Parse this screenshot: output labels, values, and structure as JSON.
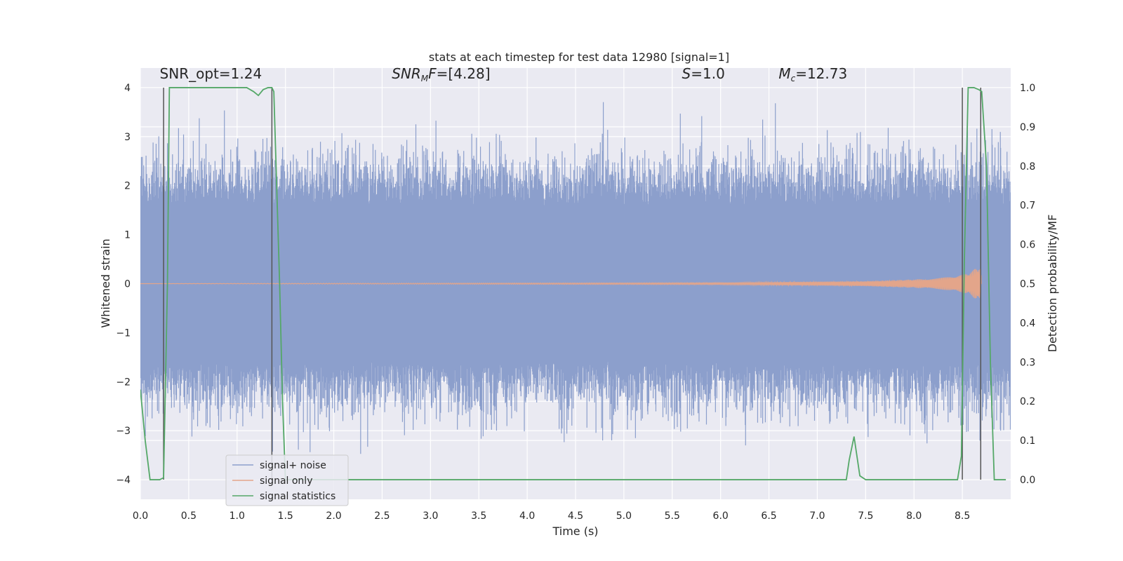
{
  "chart_data": {
    "type": "line",
    "title": "stats at each timestep for test data 12980 [signal=1]",
    "xlabel": "Time (s)",
    "ylabel": "Whitened strain",
    "y2label": "Detection probability/MF",
    "xlim": [
      0,
      9
    ],
    "ylim": [
      -4.4,
      4.4
    ],
    "y2lim": [
      -0.05,
      1.05
    ],
    "xticks": [
      0.0,
      0.5,
      1.0,
      1.5,
      2.0,
      2.5,
      3.0,
      3.5,
      4.0,
      4.5,
      5.0,
      5.5,
      6.0,
      6.5,
      7.0,
      7.5,
      8.0,
      8.5
    ],
    "xtick_labels": [
      "0.0",
      "0.5",
      "1.0",
      "1.5",
      "2.0",
      "2.5",
      "3.0",
      "3.5",
      "4.0",
      "4.5",
      "5.0",
      "5.5",
      "6.0",
      "6.5",
      "7.0",
      "7.5",
      "8.0",
      "8.5"
    ],
    "yticks": [
      -4,
      -3,
      -2,
      -1,
      0,
      1,
      2,
      3,
      4
    ],
    "ytick_labels": [
      "−4",
      "−3",
      "−2",
      "−1",
      "0",
      "1",
      "2",
      "3",
      "4"
    ],
    "y2ticks": [
      0.0,
      0.1,
      0.2,
      0.3,
      0.4,
      0.5,
      0.6,
      0.7,
      0.8,
      0.9,
      1.0
    ],
    "y2tick_labels": [
      "0.0",
      "0.1",
      "0.2",
      "0.3",
      "0.4",
      "0.5",
      "0.6",
      "0.7",
      "0.8",
      "0.9",
      "1.0"
    ],
    "grid": true,
    "legend_position": "lower-left",
    "annotations": [
      {
        "html": "SNR_opt=1.24",
        "x": 0.2,
        "y": 4.1
      },
      {
        "html": "<tspan font-style='italic'>SNR</tspan><tspan font-style='italic' font-size='12' dy='4'>M</tspan><tspan font-style='italic' dy='-4'>F</tspan>=[4.28]",
        "x": 2.6,
        "y": 4.1
      },
      {
        "html": "<tspan font-style='italic'>S</tspan>=1.0",
        "x": 5.6,
        "y": 4.1
      },
      {
        "html": "<tspan font-style='italic'>M</tspan><tspan font-style='italic' font-size='12' dy='4'>c</tspan><tspan dy='-4'>=12.73</tspan>",
        "x": 6.6,
        "y": 4.1
      }
    ],
    "series": [
      {
        "name": "signal+ noise",
        "color": "#8c9fcc",
        "kind": "noise",
        "x_range": [
          0,
          9
        ],
        "sigma_inner": 1.6,
        "peak_max": 4.0
      },
      {
        "name": "signal only",
        "color": "#e3a58a",
        "kind": "chirp",
        "x_range": [
          0,
          8.7
        ],
        "envelope": [
          [
            0,
            0.0
          ],
          [
            6.0,
            0.02
          ],
          [
            7.5,
            0.05
          ],
          [
            8.2,
            0.1
          ],
          [
            8.5,
            0.18
          ],
          [
            8.6,
            0.25
          ],
          [
            8.65,
            0.35
          ],
          [
            8.69,
            0.3
          ],
          [
            8.7,
            0.0
          ]
        ]
      },
      {
        "name": "signal statistics",
        "color": "#55a868",
        "kind": "step",
        "axis": "y2",
        "points": [
          [
            0.0,
            0.23
          ],
          [
            0.05,
            0.1
          ],
          [
            0.1,
            0.0
          ],
          [
            0.2,
            0.0
          ],
          [
            0.24,
            0.005
          ],
          [
            0.28,
            0.5
          ],
          [
            0.3,
            1.0
          ],
          [
            1.0,
            1.0
          ],
          [
            1.1,
            1.0
          ],
          [
            1.17,
            0.99
          ],
          [
            1.22,
            0.98
          ],
          [
            1.27,
            0.995
          ],
          [
            1.32,
            1.0
          ],
          [
            1.36,
            1.0
          ],
          [
            1.38,
            0.99
          ],
          [
            1.44,
            0.5
          ],
          [
            1.47,
            0.2
          ],
          [
            1.5,
            0.0
          ],
          [
            7.3,
            0.0
          ],
          [
            7.33,
            0.05
          ],
          [
            7.38,
            0.11
          ],
          [
            7.44,
            0.01
          ],
          [
            7.5,
            0.0
          ],
          [
            8.45,
            0.0
          ],
          [
            8.49,
            0.06
          ],
          [
            8.52,
            0.55
          ],
          [
            8.56,
            1.0
          ],
          [
            8.62,
            1.0
          ],
          [
            8.67,
            0.995
          ],
          [
            8.7,
            0.99
          ],
          [
            8.75,
            0.8
          ],
          [
            8.79,
            0.3
          ],
          [
            8.83,
            0.0
          ],
          [
            8.95,
            0.0
          ]
        ]
      }
    ],
    "vlines": [
      0.24,
      1.36,
      8.5,
      8.69
    ]
  }
}
